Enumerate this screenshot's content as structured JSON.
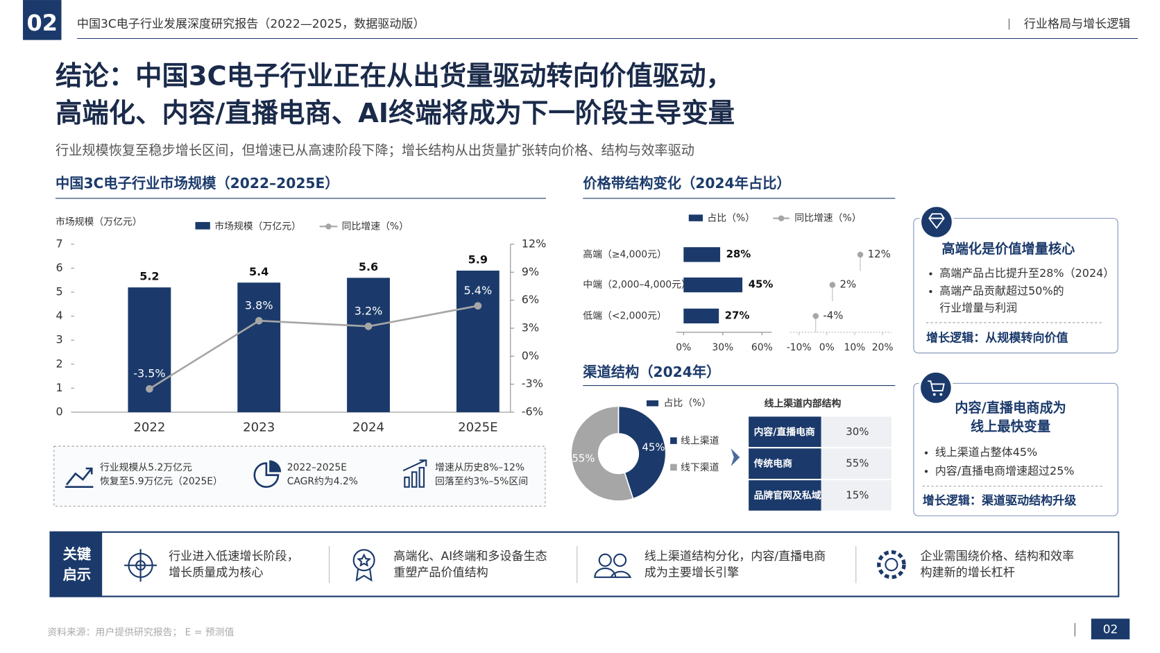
{
  "header": {
    "page_no": "02",
    "title": "中国3C电子行业发展深度研究报告（2022—2025，数据驱动版）",
    "section": "行业格局与增长逻辑"
  },
  "headline": {
    "title_lines": [
      "结论：中国3C电子行业正在从出货量驱动转向价值驱动，",
      "高端化、内容/直播电商、AI终端将成为下一阶段主导变量"
    ],
    "subtitle": "行业规模恢复至稳步增长区间，但增速已从高速阶段下降；增长结构从出货量扩张转向价格、结构与效率驱动"
  },
  "chart_data": [
    {
      "type": "bar_line",
      "title": "中国3C电子行业市场规模（2022–2025E）",
      "y_label": "市场规模（万亿元）",
      "categories": [
        "2022",
        "2023",
        "2024",
        "2025E"
      ],
      "series": [
        {
          "name": "市场规模（万亿元）",
          "color": "#1b3a6b",
          "values": [
            5.2,
            5.4,
            5.6,
            5.9
          ]
        },
        {
          "name": "同比增速（%）",
          "color": "#a6a6a6",
          "axis": "y2",
          "values": [
            -3.5,
            3.8,
            3.2,
            5.4
          ],
          "value_labels": [
            "-3.5%",
            "3.8%",
            "3.2%",
            "5.4%"
          ]
        }
      ],
      "ylim": [
        0,
        7
      ],
      "yticks": [
        0,
        1,
        2,
        3,
        4,
        5,
        6,
        7
      ],
      "y2lim": [
        -6,
        12
      ],
      "y2ticks": [
        {
          "value": -6,
          "label": "-6%"
        },
        {
          "value": -3,
          "label": "-3%"
        },
        {
          "value": 0,
          "label": "0%"
        },
        {
          "value": 3,
          "label": "3%"
        },
        {
          "value": 6,
          "label": "6%"
        },
        {
          "value": 9,
          "label": "9%"
        },
        {
          "value": 12,
          "label": "12%"
        }
      ]
    },
    {
      "type": "hbar",
      "title": "价格带结构变化（2024年占比）",
      "categories": [
        "高端（≥4,000元）",
        "中端（2,000–4,000元）",
        "低端（<2,000元）"
      ],
      "series": [
        {
          "name": "占比（%）",
          "color": "#1b3a6b",
          "values": [
            28,
            45,
            27
          ],
          "value_labels": [
            "28%",
            "45%",
            "27%"
          ]
        },
        {
          "name": "同比增速（%）",
          "color": "#a6a6a6",
          "axis": "x2",
          "values": [
            12,
            2,
            -4
          ],
          "value_labels": [
            "12%",
            "2%",
            "-4%"
          ]
        }
      ],
      "xlim": [
        0,
        60
      ],
      "xticks": [
        {
          "value": 0,
          "label": "0%"
        },
        {
          "value": 30,
          "label": "30%"
        },
        {
          "value": 60,
          "label": "60%"
        }
      ],
      "x2lim": [
        -10,
        20
      ],
      "x2ticks": [
        {
          "value": -10,
          "label": "-10%"
        },
        {
          "value": 0,
          "label": "0%"
        },
        {
          "value": 10,
          "label": "10%"
        },
        {
          "value": 20,
          "label": "20%"
        }
      ]
    },
    {
      "type": "donut",
      "title": "渠道结构（2024年）",
      "legend_title": "占比（%）",
      "categories": [
        "线上渠道",
        "线下渠道"
      ],
      "values": [
        45,
        55
      ],
      "value_labels": [
        "45%",
        "55%"
      ],
      "colors": [
        "#1b3a6b",
        "#a6a6a6"
      ]
    }
  ],
  "online_table": {
    "title": "线上渠道内部结构",
    "rows": [
      [
        "内容/直播电商",
        "30%"
      ],
      [
        "传统电商",
        "55%"
      ],
      [
        "品牌官网及私域",
        "15%"
      ]
    ]
  },
  "stats": [
    [
      "行业规模从5.2万亿元",
      "恢复至5.9万亿元（2025E）"
    ],
    [
      "2022–2025E",
      "CAGR约为4.2%"
    ],
    [
      "增速从历史8%–12%",
      "回落至约3%–5%区间"
    ]
  ],
  "cards": [
    {
      "title_lines": [
        "高端化是价值增量核心"
      ],
      "bullets": [
        [
          "高端产品占比提升至28%（2024）"
        ],
        [
          "高端产品贡献超过50%的",
          "行业增量与利润"
        ]
      ],
      "logic": "增长逻辑：从规模转向价值"
    },
    {
      "title_lines": [
        "内容/直播电商成为",
        "线上最快变量"
      ],
      "bullets": [
        [
          "线上渠道占整体45%"
        ],
        [
          "内容/直播电商增速超过25%"
        ]
      ],
      "logic": "增长逻辑：渠道驱动结构升级"
    }
  ],
  "insights": {
    "label_lines": [
      "关键",
      "启示"
    ],
    "items": [
      [
        "行业进入低速增长阶段，",
        "增长质量成为核心"
      ],
      [
        "高端化、AI终端和多设备生态",
        "重塑产品价值结构"
      ],
      [
        "线上渠道结构分化，内容/直播电商",
        "成为主要增长引擎"
      ],
      [
        "企业需围绕价格、结构和效率",
        "构建新的增长杠杆"
      ]
    ]
  },
  "footer": {
    "source": "资料来源：用户提供研究报告； E = 预测值",
    "page_no": "02"
  }
}
